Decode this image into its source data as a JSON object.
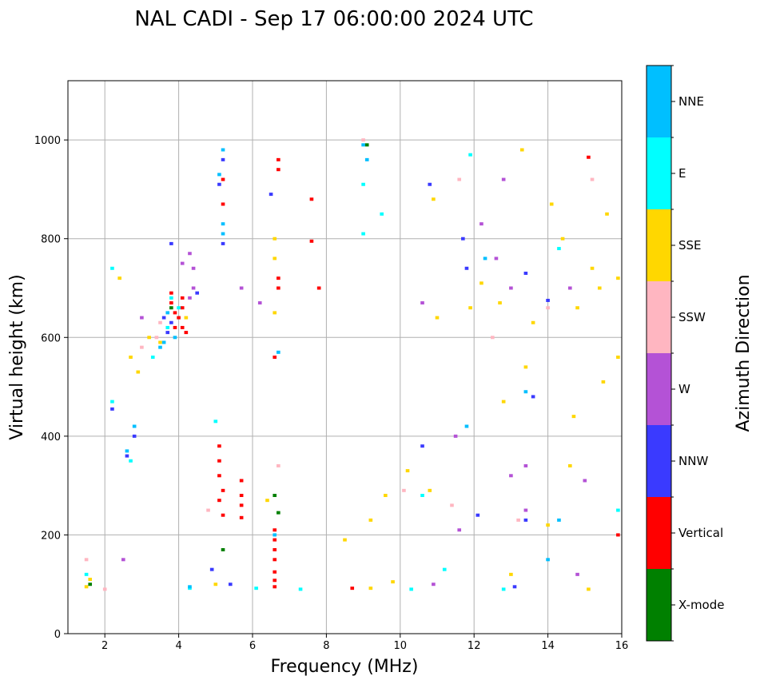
{
  "chart_data": {
    "type": "scatter",
    "title": "NAL CADI - Sep 17 06:00:00 2024 UTC",
    "xlabel": "Frequency (MHz)",
    "ylabel": "Virtual height (km)",
    "xlim": [
      1,
      16
    ],
    "ylim": [
      0,
      1120
    ],
    "xticks": [
      2,
      4,
      6,
      8,
      10,
      12,
      14,
      16
    ],
    "yticks": [
      0,
      200,
      400,
      600,
      800,
      1000
    ],
    "grid": true,
    "colorbar": {
      "label": "Azimuth Direction",
      "categories": [
        {
          "name": "X-mode",
          "color": "#008000"
        },
        {
          "name": "Vertical",
          "color": "#ff0000"
        },
        {
          "name": "NNW",
          "color": "#3a3aff"
        },
        {
          "name": "W",
          "color": "#b452d6"
        },
        {
          "name": "SSW",
          "color": "#ffb6c1"
        },
        {
          "name": "SSE",
          "color": "#ffd700"
        },
        {
          "name": "E",
          "color": "#00ffff"
        },
        {
          "name": "NNE",
          "color": "#00bfff"
        }
      ]
    },
    "series": [
      {
        "name": "Vertical",
        "color": "#ff0000",
        "points": [
          [
            3.8,
            690
          ],
          [
            3.8,
            670
          ],
          [
            3.9,
            650
          ],
          [
            4.0,
            640
          ],
          [
            4.1,
            680
          ],
          [
            4.1,
            660
          ],
          [
            4.1,
            620
          ],
          [
            4.2,
            610
          ],
          [
            3.9,
            620
          ],
          [
            5.1,
            380
          ],
          [
            5.1,
            350
          ],
          [
            5.1,
            320
          ],
          [
            5.2,
            290
          ],
          [
            5.1,
            270
          ],
          [
            5.2,
            240
          ],
          [
            5.7,
            310
          ],
          [
            5.7,
            280
          ],
          [
            5.7,
            260
          ],
          [
            5.7,
            235
          ],
          [
            6.6,
            210
          ],
          [
            6.6,
            190
          ],
          [
            6.6,
            170
          ],
          [
            6.6,
            150
          ],
          [
            6.6,
            125
          ],
          [
            6.6,
            108
          ],
          [
            6.6,
            95
          ],
          [
            6.7,
            960
          ],
          [
            6.7,
            940
          ],
          [
            6.7,
            720
          ],
          [
            6.7,
            700
          ],
          [
            7.6,
            880
          ],
          [
            7.6,
            795
          ],
          [
            7.8,
            700
          ],
          [
            6.6,
            560
          ],
          [
            15.1,
            965
          ],
          [
            15.9,
            200
          ],
          [
            8.7,
            92
          ],
          [
            5.2,
            870
          ],
          [
            5.2,
            920
          ]
        ]
      },
      {
        "name": "NNW",
        "color": "#3a3aff",
        "points": [
          [
            3.6,
            640
          ],
          [
            3.8,
            630
          ],
          [
            3.7,
            610
          ],
          [
            2.6,
            360
          ],
          [
            2.8,
            400
          ],
          [
            2.2,
            455
          ],
          [
            4.9,
            130
          ],
          [
            5.2,
            790
          ],
          [
            5.4,
            100
          ],
          [
            6.5,
            890
          ],
          [
            10.8,
            910
          ],
          [
            10.6,
            380
          ],
          [
            11.7,
            800
          ],
          [
            11.8,
            740
          ],
          [
            12.1,
            240
          ],
          [
            13.4,
            730
          ],
          [
            13.4,
            230
          ],
          [
            13.6,
            480
          ],
          [
            14.0,
            675
          ],
          [
            13.1,
            95
          ],
          [
            5.2,
            960
          ],
          [
            5.1,
            910
          ],
          [
            3.8,
            790
          ],
          [
            4.5,
            690
          ]
        ]
      },
      {
        "name": "W",
        "color": "#b452d6",
        "points": [
          [
            4.4,
            700
          ],
          [
            4.3,
            680
          ],
          [
            4.4,
            740
          ],
          [
            4.1,
            750
          ],
          [
            4.3,
            770
          ],
          [
            12.2,
            830
          ],
          [
            12.6,
            760
          ],
          [
            13.0,
            700
          ],
          [
            13.0,
            320
          ],
          [
            13.4,
            250
          ],
          [
            13.4,
            340
          ],
          [
            14.6,
            700
          ],
          [
            14.8,
            120
          ],
          [
            15.0,
            310
          ],
          [
            12.8,
            920
          ],
          [
            11.5,
            400
          ],
          [
            10.9,
            100
          ],
          [
            11.6,
            210
          ],
          [
            10.6,
            670
          ],
          [
            6.2,
            670
          ],
          [
            5.7,
            700
          ],
          [
            2.5,
            150
          ],
          [
            3.0,
            640
          ]
        ]
      },
      {
        "name": "SSW",
        "color": "#ffb6c1",
        "points": [
          [
            1.5,
            150
          ],
          [
            2.0,
            90
          ],
          [
            3.4,
            600
          ],
          [
            3.0,
            580
          ],
          [
            3.5,
            630
          ],
          [
            4.8,
            250
          ],
          [
            9.0,
            1000
          ],
          [
            11.6,
            920
          ],
          [
            12.5,
            600
          ],
          [
            13.2,
            230
          ],
          [
            14.0,
            660
          ],
          [
            15.2,
            920
          ],
          [
            10.1,
            290
          ],
          [
            11.4,
            260
          ],
          [
            6.7,
            340
          ]
        ]
      },
      {
        "name": "SSE",
        "color": "#ffd700",
        "points": [
          [
            1.5,
            95
          ],
          [
            1.6,
            110
          ],
          [
            2.4,
            720
          ],
          [
            2.7,
            560
          ],
          [
            2.9,
            530
          ],
          [
            3.2,
            600
          ],
          [
            3.5,
            590
          ],
          [
            4.2,
            640
          ],
          [
            5.0,
            100
          ],
          [
            6.4,
            270
          ],
          [
            6.6,
            800
          ],
          [
            6.6,
            760
          ],
          [
            6.6,
            650
          ],
          [
            8.5,
            190
          ],
          [
            9.2,
            230
          ],
          [
            9.6,
            280
          ],
          [
            10.2,
            330
          ],
          [
            10.8,
            290
          ],
          [
            11.0,
            640
          ],
          [
            11.9,
            660
          ],
          [
            12.2,
            710
          ],
          [
            12.7,
            670
          ],
          [
            12.8,
            470
          ],
          [
            13.0,
            120
          ],
          [
            13.4,
            540
          ],
          [
            13.6,
            630
          ],
          [
            14.0,
            220
          ],
          [
            14.1,
            870
          ],
          [
            14.4,
            800
          ],
          [
            14.6,
            340
          ],
          [
            14.8,
            660
          ],
          [
            15.1,
            90
          ],
          [
            15.4,
            700
          ],
          [
            15.6,
            850
          ],
          [
            15.9,
            720
          ],
          [
            15.9,
            560
          ],
          [
            15.5,
            510
          ],
          [
            15.2,
            740
          ],
          [
            14.7,
            440
          ],
          [
            13.3,
            980
          ],
          [
            10.9,
            880
          ],
          [
            9.8,
            105
          ],
          [
            9.2,
            92
          ]
        ]
      },
      {
        "name": "E",
        "color": "#00ffff",
        "points": [
          [
            1.5,
            120
          ],
          [
            2.2,
            470
          ],
          [
            2.7,
            350
          ],
          [
            3.3,
            560
          ],
          [
            3.7,
            620
          ],
          [
            4.3,
            92
          ],
          [
            6.1,
            92
          ],
          [
            7.3,
            90
          ],
          [
            9.0,
            810
          ],
          [
            9.0,
            910
          ],
          [
            9.5,
            850
          ],
          [
            10.3,
            90
          ],
          [
            10.6,
            280
          ],
          [
            11.2,
            130
          ],
          [
            11.9,
            970
          ],
          [
            12.8,
            90
          ],
          [
            14.3,
            780
          ],
          [
            15.9,
            250
          ],
          [
            4.0,
            660
          ],
          [
            5.0,
            430
          ],
          [
            3.8,
            680
          ],
          [
            2.2,
            740
          ]
        ]
      },
      {
        "name": "NNE",
        "color": "#00bfff",
        "points": [
          [
            3.5,
            580
          ],
          [
            3.6,
            590
          ],
          [
            3.9,
            600
          ],
          [
            3.7,
            650
          ],
          [
            2.6,
            370
          ],
          [
            2.8,
            420
          ],
          [
            4.3,
            95
          ],
          [
            5.1,
            930
          ],
          [
            6.7,
            570
          ],
          [
            9.0,
            990
          ],
          [
            9.1,
            960
          ],
          [
            11.8,
            420
          ],
          [
            12.3,
            760
          ],
          [
            13.4,
            490
          ],
          [
            14.3,
            230
          ],
          [
            14.0,
            150
          ],
          [
            5.2,
            980
          ],
          [
            5.2,
            830
          ],
          [
            5.2,
            810
          ],
          [
            6.6,
            200
          ]
        ]
      },
      {
        "name": "X-mode",
        "color": "#008000",
        "points": [
          [
            1.6,
            100
          ],
          [
            6.6,
            280
          ],
          [
            6.7,
            245
          ],
          [
            9.1,
            990
          ],
          [
            5.2,
            170
          ],
          [
            3.8,
            660
          ]
        ]
      }
    ]
  }
}
